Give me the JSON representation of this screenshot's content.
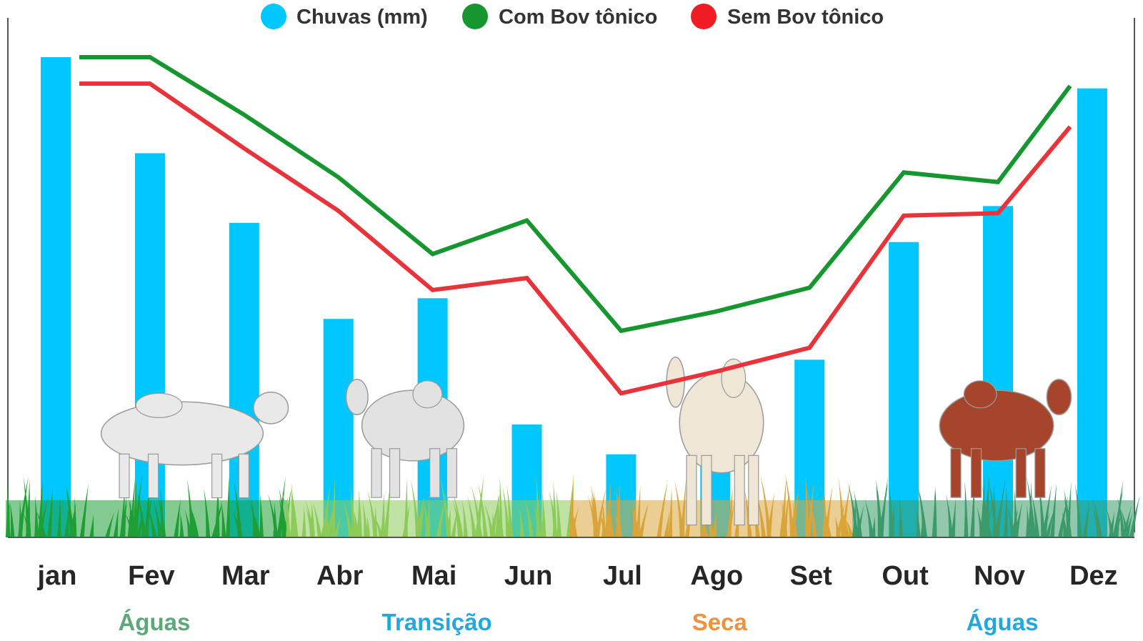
{
  "chart_data": {
    "type": "bar",
    "categories": [
      "jan",
      "Fev",
      "Mar",
      "Abr",
      "Mai",
      "Jun",
      "Jul",
      "Ago",
      "Set",
      "Out",
      "Nov",
      "Dez"
    ],
    "series": [
      {
        "name": "Chuvas (mm)",
        "kind": "bar",
        "color": "#00C8FF",
        "values": [
          100,
          80,
          65.5,
          45.5,
          49.8,
          23.5,
          17.3,
          30,
          37,
          61.5,
          69,
          93.5
        ]
      },
      {
        "name": "Com Bov tônico",
        "kind": "line",
        "color": "#15962E",
        "values": [
          100,
          100,
          88,
          75,
          59,
          66,
          43,
          47,
          52,
          76,
          74,
          94
        ]
      },
      {
        "name": "Sem Bov tônico",
        "kind": "line",
        "color": "#E8333B",
        "values": [
          94.5,
          94.5,
          81,
          68,
          51.5,
          54,
          30,
          34.5,
          39.5,
          67,
          67.5,
          85.5
        ]
      }
    ],
    "seasons": [
      {
        "label": "Águas",
        "color": "#5DA879",
        "months": [
          "jan",
          "Fev",
          "Mar"
        ]
      },
      {
        "label": "Transição",
        "color": "#22A8DC",
        "months": [
          "Abr",
          "Mai",
          "Jun"
        ]
      },
      {
        "label": "Seca",
        "color": "#F0913B",
        "months": [
          "Jul",
          "Ago",
          "Set"
        ]
      },
      {
        "label": "Águas",
        "color": "#22A8DC",
        "months": [
          "Out",
          "Nov",
          "Dez"
        ]
      }
    ],
    "grass_colors": [
      "#1E9E35",
      "#8CCB5A",
      "#D9A53A",
      "#3C9A6A"
    ],
    "ylim": [
      0,
      100
    ],
    "legend_position": "top-center",
    "grid": false,
    "title": "",
    "xlabel": "",
    "ylabel": ""
  },
  "decorations": {
    "cattle": [
      {
        "name": "nelore-bull-white",
        "color": "#E9E9E9"
      },
      {
        "name": "nelore-cow-white",
        "color": "#E2E2E2"
      },
      {
        "name": "nelore-cow-and-calf",
        "color": "#EFE6D6"
      },
      {
        "name": "red-zebu-bull",
        "color": "#A6452B"
      }
    ]
  }
}
